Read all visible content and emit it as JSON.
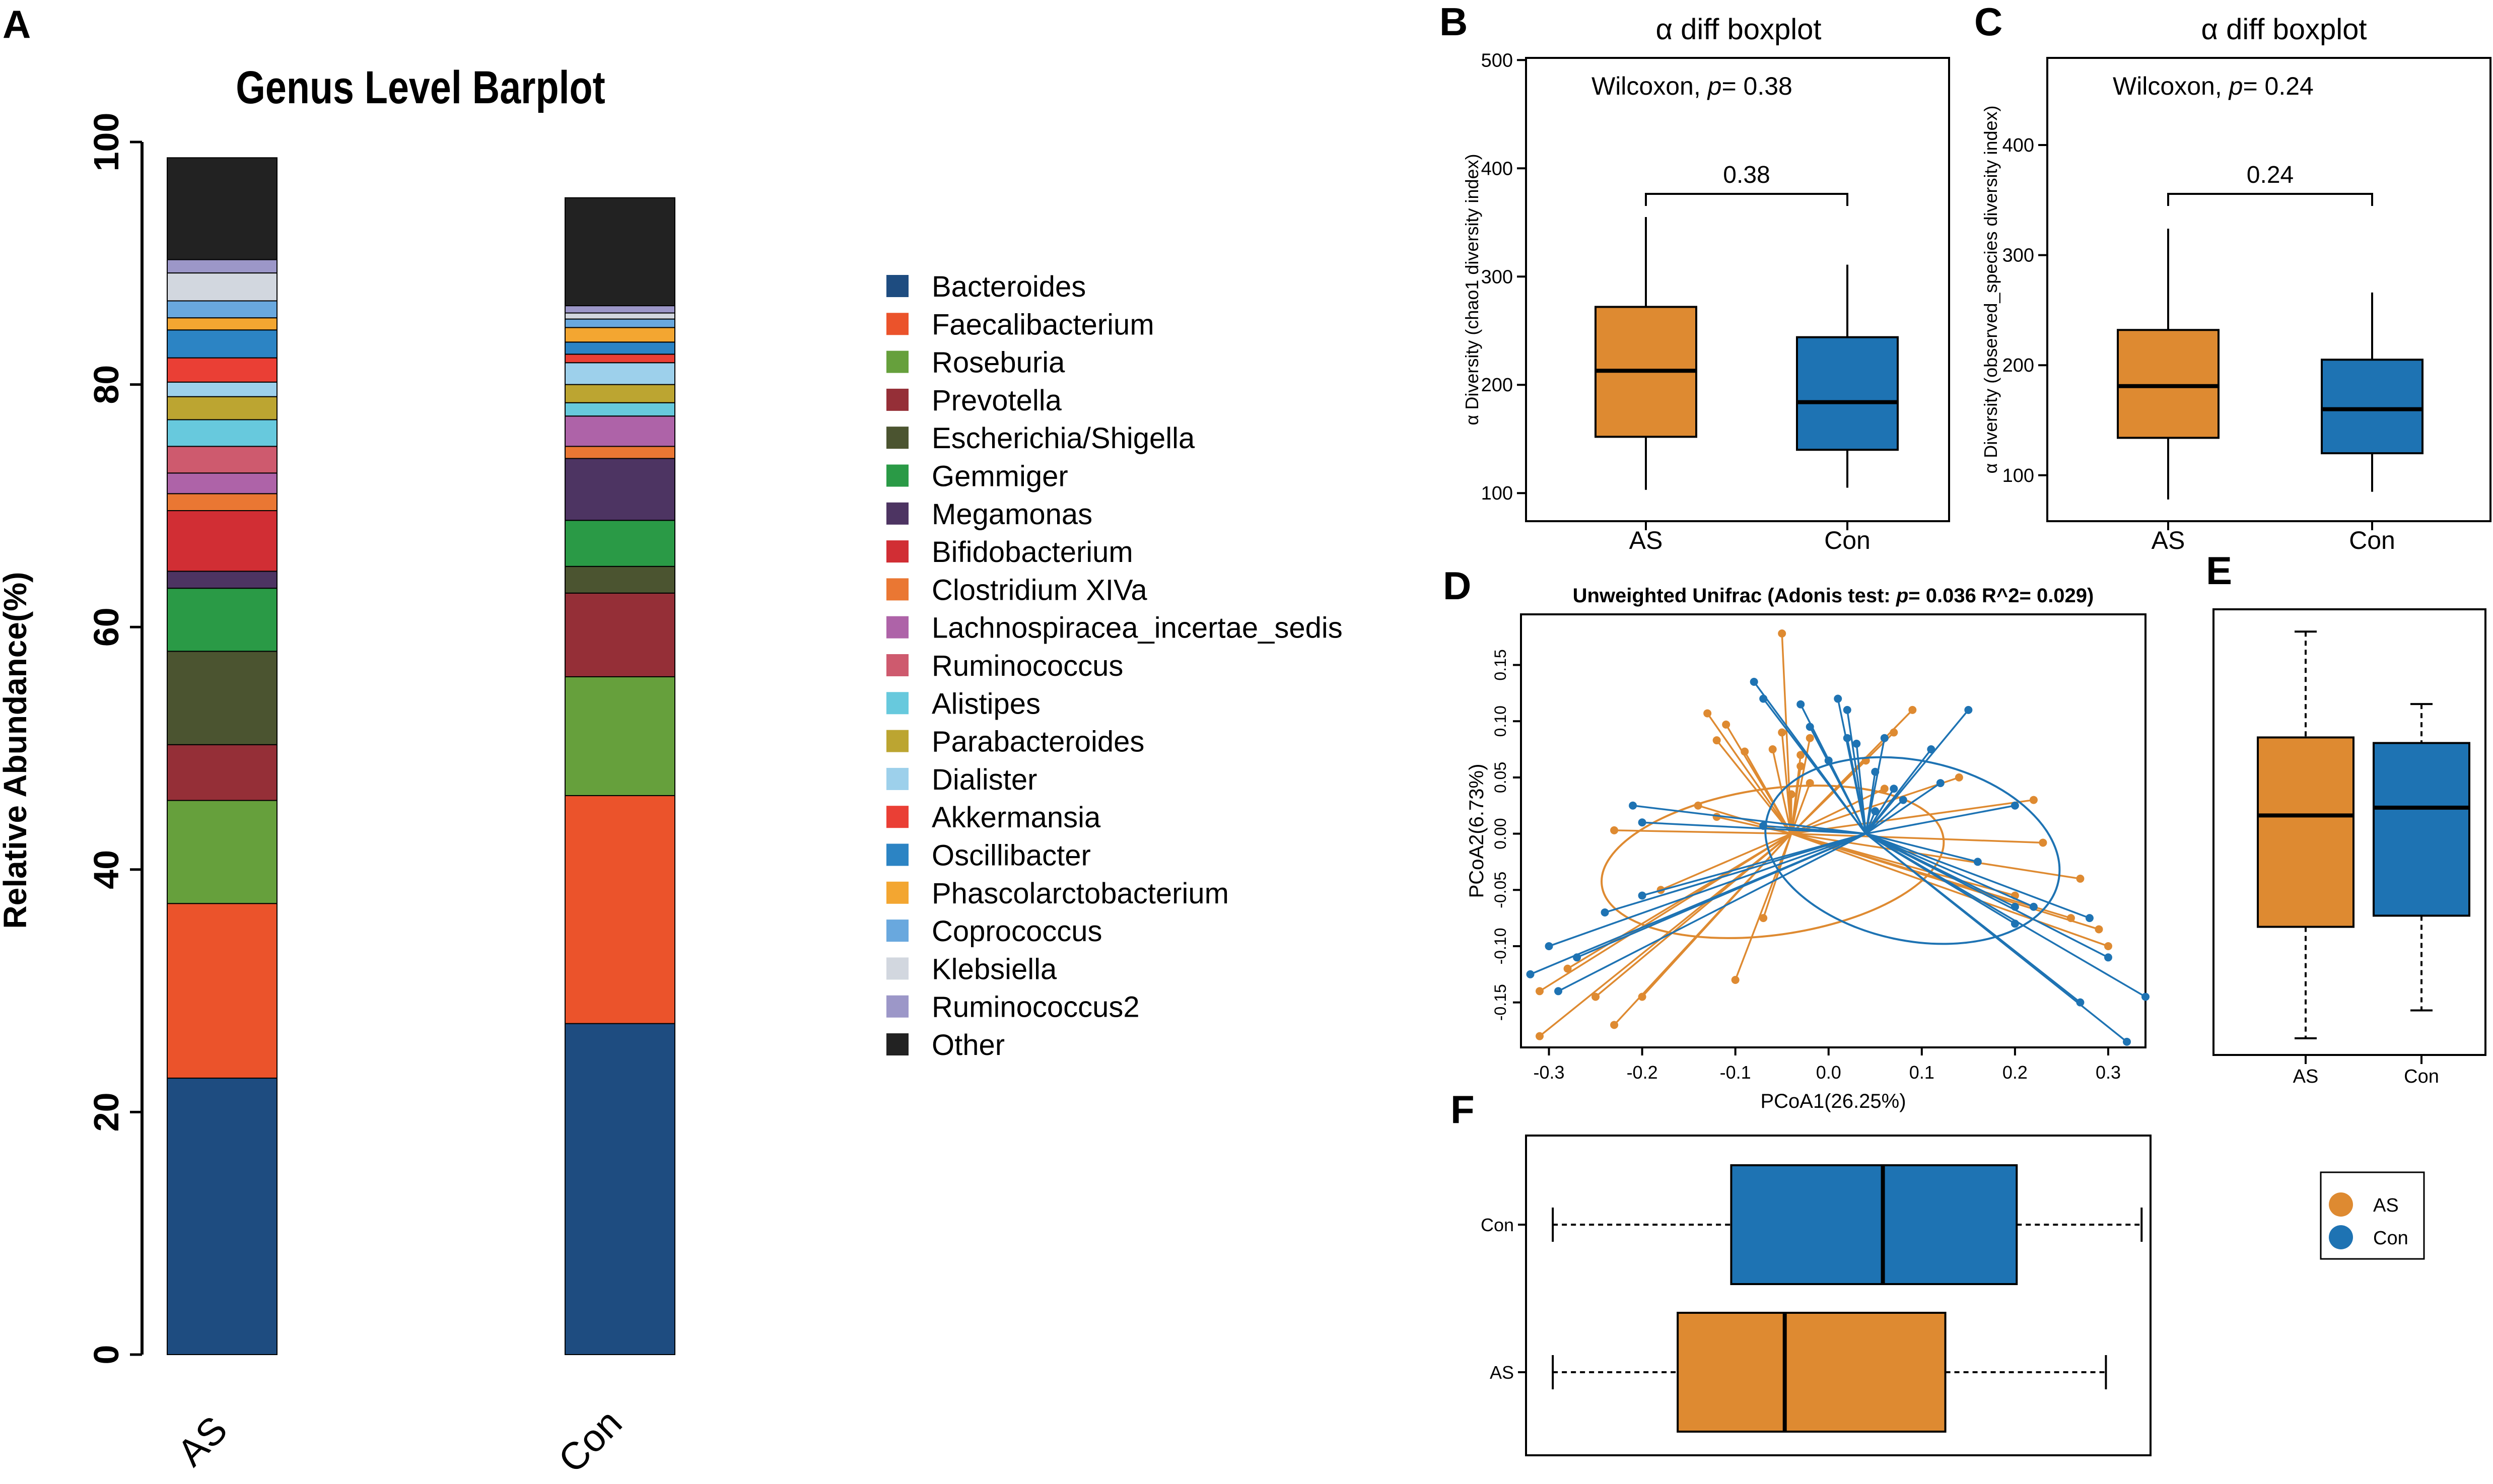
{
  "colors": {
    "as": "#DE8A31",
    "con": "#1E73B3",
    "frame": "#000000"
  },
  "chart_data": [
    {
      "id": "A",
      "type": "bar",
      "stacked": true,
      "panel_letter": "A",
      "title": "Genus Level Barplot",
      "xlabel": "",
      "ylabel": "Relative Abundance(%)",
      "ylim": [
        0,
        100
      ],
      "yticks": [
        "0",
        "20",
        "40",
        "60",
        "80",
        "100"
      ],
      "categories": [
        "AS",
        "Con"
      ],
      "series": [
        {
          "name": "Bacteroides",
          "color": "#1E4C80",
          "values": [
            22.8,
            27.3
          ]
        },
        {
          "name": "Faecalibacterium",
          "color": "#EB532B",
          "values": [
            14.4,
            18.8
          ]
        },
        {
          "name": "Roseburia",
          "color": "#66A03C",
          "values": [
            8.5,
            9.8
          ]
        },
        {
          "name": "Prevotella",
          "color": "#952F37",
          "values": [
            4.6,
            6.9
          ]
        },
        {
          "name": "Escherichia/Shigella",
          "color": "#4B5430",
          "values": [
            7.7,
            2.2
          ]
        },
        {
          "name": "Gemmiger",
          "color": "#2A9A46",
          "values": [
            5.2,
            3.8
          ]
        },
        {
          "name": "Megamonas",
          "color": "#4D3462",
          "values": [
            1.4,
            5.1
          ]
        },
        {
          "name": "Bifidobacterium",
          "color": "#D12E34",
          "values": [
            5.0,
            0.0
          ]
        },
        {
          "name": "Clostridium XIVa",
          "color": "#EA7733",
          "values": [
            1.4,
            1.0
          ]
        },
        {
          "name": "Lachnospiracea_incertae_sedis",
          "color": "#AE63A8",
          "values": [
            1.7,
            2.5
          ]
        },
        {
          "name": "Ruminococcus",
          "color": "#CE5A6E",
          "values": [
            2.2,
            0.0
          ]
        },
        {
          "name": "Alistipes",
          "color": "#67C9DD",
          "values": [
            2.2,
            1.1
          ]
        },
        {
          "name": "Parabacteroides",
          "color": "#BCA531",
          "values": [
            1.9,
            1.5
          ]
        },
        {
          "name": "Dialister",
          "color": "#9DD0EB",
          "values": [
            1.2,
            1.8
          ]
        },
        {
          "name": "Akkermansia",
          "color": "#EA3F35",
          "values": [
            2.0,
            0.7
          ]
        },
        {
          "name": "Oscillibacter",
          "color": "#2C84C4",
          "values": [
            2.3,
            1.0
          ]
        },
        {
          "name": "Phascolarctobacterium",
          "color": "#F3A631",
          "values": [
            1.0,
            1.2
          ]
        },
        {
          "name": "Coprococcus",
          "color": "#69A8DE",
          "values": [
            1.4,
            0.7
          ]
        },
        {
          "name": "Klebsiella",
          "color": "#D2D7DF",
          "values": [
            2.3,
            0.5
          ]
        },
        {
          "name": "Ruminococcus2",
          "color": "#9C97C8",
          "values": [
            1.1,
            0.6
          ]
        },
        {
          "name": "Other",
          "color": "#222222",
          "values": [
            8.4,
            8.9
          ]
        }
      ]
    },
    {
      "id": "B",
      "type": "boxplot",
      "panel_letter": "B",
      "title": "α diff boxplot",
      "annotation_prefix": "Wilcoxon, ",
      "annotation_p": "p",
      "annotation_value": "= 0.38",
      "bracket_label": "0.38",
      "ylabel": "α Diversity (chao1 diversity index)",
      "ylim": [
        88,
        502
      ],
      "yticks": [
        100,
        200,
        300,
        400,
        500
      ],
      "ytick_labels": [
        "100",
        "200",
        "300",
        "400",
        "500"
      ],
      "categories": [
        "AS",
        "Con"
      ],
      "boxes": [
        {
          "group": "AS",
          "min": 103,
          "q1": 152,
          "median": 213,
          "q3": 272,
          "max": 355
        },
        {
          "group": "Con",
          "min": 105,
          "q1": 140,
          "median": 184,
          "q3": 244,
          "max": 311
        }
      ]
    },
    {
      "id": "C",
      "type": "boxplot",
      "panel_letter": "C",
      "title": "α diff boxplot",
      "annotation_prefix": "Wilcoxon, ",
      "annotation_p": "p",
      "annotation_value": "= 0.24",
      "bracket_label": "0.24",
      "ylabel": "α Diversity (observed_species diversity index)",
      "ylim": [
        72,
        470
      ],
      "yticks": [
        100,
        200,
        300,
        400
      ],
      "ytick_labels": [
        "100",
        "200",
        "300",
        "400"
      ],
      "categories": [
        "AS",
        "Con"
      ],
      "boxes": [
        {
          "group": "AS",
          "min": 78,
          "q1": 134,
          "median": 181,
          "q3": 232,
          "max": 324
        },
        {
          "group": "Con",
          "min": 85,
          "q1": 120,
          "median": 160,
          "q3": 205,
          "max": 266
        }
      ]
    },
    {
      "id": "D",
      "type": "scatter",
      "panel_letter": "D",
      "title_prefix": "Unweighted Unifrac (Adonis test: ",
      "title_p": "p",
      "title_suffix": "= 0.036  R^2= 0.029)",
      "xlabel": "PCoA1(26.25%)",
      "ylabel": "PCoA2(6.73%)",
      "xlim": [
        -0.33,
        0.34
      ],
      "ylim": [
        -0.19,
        0.195
      ],
      "xticks": [
        -0.3,
        -0.2,
        -0.1,
        0.0,
        0.1,
        0.2,
        0.3
      ],
      "xtick_labels": [
        "-0.3",
        "-0.2",
        "-0.1",
        "0.0",
        "0.1",
        "0.2",
        "0.3"
      ],
      "yticks": [
        -0.15,
        -0.1,
        -0.05,
        0.0,
        0.05,
        0.1,
        0.15
      ],
      "ytick_labels": [
        "-0.15",
        "-0.10",
        "-0.05",
        "0.00",
        "0.05",
        "0.10",
        "0.15"
      ],
      "groups": [
        {
          "name": "AS",
          "centroid": [
            -0.04,
            0.0
          ],
          "ellipse": {
            "cx": -0.06,
            "cy": -0.025,
            "rx": 0.185,
            "ry": 0.065,
            "angle": 8
          },
          "points": [
            [
              -0.05,
              0.178
            ],
            [
              -0.13,
              0.107
            ],
            [
              -0.11,
              0.097
            ],
            [
              -0.12,
              0.083
            ],
            [
              -0.09,
              0.073
            ],
            [
              -0.06,
              0.075
            ],
            [
              -0.05,
              0.09
            ],
            [
              -0.03,
              0.06
            ],
            [
              -0.02,
              0.045
            ],
            [
              -0.04,
              0.035
            ],
            [
              -0.14,
              0.025
            ],
            [
              -0.12,
              0.015
            ],
            [
              -0.23,
              0.003
            ],
            [
              -0.18,
              -0.05
            ],
            [
              -0.07,
              -0.075
            ],
            [
              -0.31,
              -0.14
            ],
            [
              -0.28,
              -0.12
            ],
            [
              -0.25,
              -0.145
            ],
            [
              -0.23,
              -0.17
            ],
            [
              -0.2,
              -0.145
            ],
            [
              -0.1,
              -0.13
            ],
            [
              -0.31,
              -0.18
            ],
            [
              -0.03,
              0.07
            ],
            [
              0.04,
              0.065
            ],
            [
              0.09,
              0.11
            ],
            [
              0.14,
              0.05
            ],
            [
              0.06,
              0.04
            ],
            [
              0.22,
              0.03
            ],
            [
              0.23,
              -0.008
            ],
            [
              0.27,
              -0.04
            ],
            [
              0.2,
              -0.055
            ],
            [
              0.26,
              -0.075
            ],
            [
              0.29,
              -0.085
            ],
            [
              0.3,
              -0.1
            ],
            [
              -0.02,
              0.085
            ],
            [
              0.07,
              0.09
            ]
          ]
        },
        {
          "name": "Con",
          "centroid": [
            0.04,
            0.0
          ],
          "ellipse": {
            "cx": 0.09,
            "cy": -0.015,
            "rx": 0.16,
            "ry": 0.08,
            "angle": -12
          },
          "points": [
            [
              -0.08,
              0.135
            ],
            [
              -0.07,
              0.12
            ],
            [
              -0.03,
              0.115
            ],
            [
              0.01,
              0.12
            ],
            [
              0.02,
              0.11
            ],
            [
              0.02,
              0.085
            ],
            [
              0.03,
              0.08
            ],
            [
              0.06,
              0.085
            ],
            [
              0.05,
              0.055
            ],
            [
              0.15,
              0.11
            ],
            [
              0.11,
              0.075
            ],
            [
              0.12,
              0.045
            ],
            [
              0.07,
              0.04
            ],
            [
              -0.21,
              0.025
            ],
            [
              -0.2,
              0.01
            ],
            [
              -0.07,
              0.007
            ],
            [
              -0.2,
              -0.055
            ],
            [
              -0.24,
              -0.07
            ],
            [
              -0.3,
              -0.1
            ],
            [
              -0.27,
              -0.11
            ],
            [
              -0.29,
              -0.14
            ],
            [
              -0.32,
              -0.125
            ],
            [
              0.2,
              0.025
            ],
            [
              0.16,
              -0.025
            ],
            [
              0.2,
              -0.065
            ],
            [
              0.22,
              -0.065
            ],
            [
              0.2,
              -0.08
            ],
            [
              0.28,
              -0.075
            ],
            [
              0.3,
              -0.11
            ],
            [
              0.27,
              -0.15
            ],
            [
              0.32,
              -0.185
            ],
            [
              0.34,
              -0.145
            ],
            [
              -0.02,
              0.095
            ],
            [
              0.0,
              0.065
            ],
            [
              0.08,
              0.03
            ],
            [
              0.05,
              0.02
            ]
          ]
        }
      ]
    },
    {
      "id": "E",
      "type": "boxplot",
      "panel_letter": "E",
      "dashed_whiskers": true,
      "ylim": [
        -0.2,
        0.2
      ],
      "categories": [
        "AS",
        "Con"
      ],
      "boxes": [
        {
          "group": "AS",
          "min": -0.185,
          "q1": -0.085,
          "median": 0.015,
          "q3": 0.085,
          "max": 0.18
        },
        {
          "group": "Con",
          "min": -0.16,
          "q1": -0.075,
          "median": 0.022,
          "q3": 0.08,
          "max": 0.115
        }
      ]
    },
    {
      "id": "F",
      "type": "boxplot",
      "orientation": "horizontal",
      "panel_letter": "F",
      "dashed_whiskers": true,
      "xlim": [
        -0.35,
        0.35
      ],
      "categories": [
        "Con",
        "AS"
      ],
      "boxes": [
        {
          "group": "Con",
          "min": -0.32,
          "q1": -0.12,
          "median": 0.05,
          "q3": 0.2,
          "max": 0.34
        },
        {
          "group": "AS",
          "min": -0.32,
          "q1": -0.18,
          "median": -0.06,
          "q3": 0.12,
          "max": 0.3
        }
      ]
    }
  ],
  "legend_pcoa": [
    "AS",
    "Con"
  ]
}
